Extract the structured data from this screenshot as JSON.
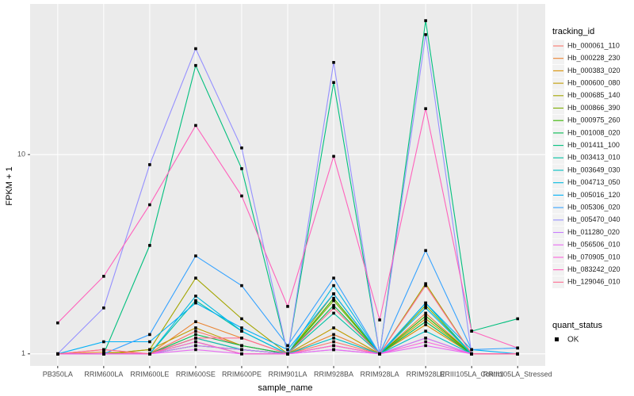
{
  "chart_data": {
    "type": "line",
    "x_label": "sample_name",
    "y_label": "FPKM + 1",
    "categories": [
      "PB350LA",
      "RRIM600LA",
      "RRIM600LE",
      "RRIM600SE",
      "RRIM600PE",
      "RRIM901LA",
      "RRIM928BA",
      "RRIM928LA",
      "RRIM928LE",
      "RRIII105LA_Control",
      "RRIII105LA_Stressed"
    ],
    "y_log": true,
    "ylim": [
      0.87,
      57
    ],
    "yticks": [
      1,
      10
    ],
    "grid": true,
    "legend_title": "tracking_id",
    "legend_position": "right",
    "point_legend": {
      "title": "quant_status",
      "labels": [
        "OK"
      ]
    },
    "series": [
      {
        "name": "Hb_000061_110",
        "color": "#F8766D",
        "values": [
          1,
          1.05,
          1,
          1.3,
          1.1,
          1,
          1.15,
          1,
          1.2,
          1,
          1
        ]
      },
      {
        "name": "Hb_000228_230",
        "color": "#EA8331",
        "values": [
          1,
          1.02,
          1,
          1.45,
          1.2,
          1,
          1.25,
          1,
          1.6,
          1,
          1
        ]
      },
      {
        "name": "Hb_000383_020",
        "color": "#D89000",
        "values": [
          1,
          1,
          1,
          1.2,
          1.05,
          1,
          1.1,
          1,
          1.4,
          1,
          1
        ]
      },
      {
        "name": "Hb_000600_080",
        "color": "#C09B00",
        "values": [
          1,
          1,
          1.05,
          1.35,
          1.1,
          1,
          1.35,
          1,
          1.5,
          1,
          1
        ]
      },
      {
        "name": "Hb_000685_140",
        "color": "#A3A500",
        "values": [
          1,
          1,
          1.05,
          2.4,
          1.5,
          1,
          2.0,
          1,
          2.25,
          1,
          1
        ]
      },
      {
        "name": "Hb_000866_390",
        "color": "#7CAE00",
        "values": [
          1,
          1,
          1,
          1.15,
          1,
          1,
          1.85,
          1,
          1.75,
          1,
          1
        ]
      },
      {
        "name": "Hb_000975_260",
        "color": "#39B600",
        "values": [
          1,
          1,
          1,
          1.1,
          1.05,
          1,
          1.9,
          1,
          1.55,
          1,
          1
        ]
      },
      {
        "name": "Hb_001008_020",
        "color": "#00BB4E",
        "values": [
          1,
          1,
          1,
          1.25,
          1.1,
          1,
          1.75,
          1,
          1.45,
          1,
          1
        ]
      },
      {
        "name": "Hb_001411_100",
        "color": "#00BF7D",
        "values": [
          1,
          1,
          3.5,
          28,
          8.5,
          1,
          23,
          1,
          47,
          1.3,
          1.5
        ]
      },
      {
        "name": "Hb_003413_010",
        "color": "#00C1A3",
        "values": [
          1,
          1,
          1,
          1.85,
          1.3,
          1,
          1.6,
          1,
          1.8,
          1,
          1
        ]
      },
      {
        "name": "Hb_003649_030",
        "color": "#00BFC4",
        "values": [
          1,
          1,
          1,
          1.2,
          1.05,
          1,
          1.2,
          1,
          1.3,
          1,
          1
        ]
      },
      {
        "name": "Hb_004713_050",
        "color": "#00BAE0",
        "values": [
          1,
          1,
          1,
          1.95,
          1.3,
          1,
          2.2,
          1,
          1.7,
          1,
          1
        ]
      },
      {
        "name": "Hb_005016_120",
        "color": "#00B0F6",
        "values": [
          1,
          1.15,
          1.15,
          1.8,
          1.35,
          1.05,
          2.0,
          1,
          1.8,
          1.05,
          1
        ]
      },
      {
        "name": "Hb_005306_020",
        "color": "#35A2FF",
        "values": [
          1,
          1,
          1.25,
          3.1,
          2.2,
          1.1,
          2.4,
          1,
          3.3,
          1.05,
          1.07
        ]
      },
      {
        "name": "Hb_005470_040",
        "color": "#9590FF",
        "values": [
          1,
          1.7,
          8.9,
          34,
          10.8,
          1,
          29,
          1,
          40,
          1,
          1
        ]
      },
      {
        "name": "Hb_011280_020",
        "color": "#C77CFF",
        "values": [
          1,
          1,
          1,
          1.1,
          1.05,
          1,
          1.05,
          1,
          1.2,
          1,
          1
        ]
      },
      {
        "name": "Hb_056506_010",
        "color": "#E76BF3",
        "values": [
          1,
          1,
          1,
          1.05,
          1,
          1,
          1.05,
          1,
          1.1,
          1,
          1
        ]
      },
      {
        "name": "Hb_070905_010",
        "color": "#FA62DB",
        "values": [
          1,
          1,
          1,
          1.15,
          1,
          1,
          1.1,
          1,
          1.15,
          1,
          1
        ]
      },
      {
        "name": "Hb_083242_020",
        "color": "#FF62BC",
        "values": [
          1.43,
          2.45,
          5.6,
          14,
          6.2,
          1.73,
          9.8,
          1.48,
          17,
          1.3,
          1.07
        ]
      },
      {
        "name": "Hb_129046_010",
        "color": "#FF6C91",
        "values": [
          1,
          1.05,
          1,
          1.2,
          1.2,
          1,
          1.7,
          1,
          2.2,
          1,
          1
        ]
      }
    ]
  }
}
